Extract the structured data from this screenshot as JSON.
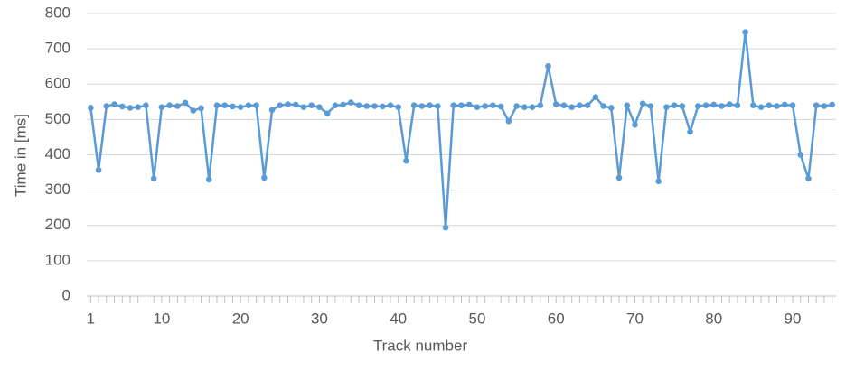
{
  "chart_data": {
    "type": "line",
    "x_label": "Track number",
    "y_label": "Time in [ms]",
    "x": [
      1,
      2,
      3,
      4,
      5,
      6,
      7,
      8,
      9,
      10,
      11,
      12,
      13,
      14,
      15,
      16,
      17,
      18,
      19,
      20,
      21,
      22,
      23,
      24,
      25,
      26,
      27,
      28,
      29,
      30,
      31,
      32,
      33,
      34,
      35,
      36,
      37,
      38,
      39,
      40,
      41,
      42,
      43,
      44,
      45,
      46,
      47,
      48,
      49,
      50,
      51,
      52,
      53,
      54,
      55,
      56,
      57,
      58,
      59,
      60,
      61,
      62,
      63,
      64,
      65,
      66,
      67,
      68,
      69,
      70,
      71,
      72,
      73,
      74,
      75,
      76,
      77,
      78,
      79,
      80,
      81,
      82,
      83,
      84,
      85,
      86,
      87,
      88,
      89,
      90,
      91,
      92,
      93,
      94,
      95
    ],
    "series": [
      {
        "name": "Time",
        "color": "#5b9bd5",
        "values": [
          533,
          357,
          538,
          543,
          537,
          533,
          535,
          540,
          333,
          535,
          540,
          538,
          547,
          525,
          532,
          330,
          540,
          540,
          537,
          535,
          540,
          540,
          335,
          527,
          540,
          543,
          542,
          535,
          540,
          535,
          517,
          540,
          542,
          548,
          540,
          538,
          538,
          537,
          540,
          535,
          383,
          540,
          538,
          540,
          538,
          194,
          540,
          540,
          542,
          535,
          538,
          540,
          537,
          495,
          538,
          535,
          535,
          540,
          651,
          543,
          540,
          535,
          540,
          540,
          563,
          538,
          533,
          335,
          540,
          485,
          545,
          538,
          325,
          535,
          540,
          538,
          465,
          538,
          540,
          542,
          538,
          543,
          540,
          747,
          540,
          535,
          540,
          538,
          542,
          540,
          400,
          333,
          540,
          538,
          542
        ]
      }
    ],
    "xlim": [
      0.5,
      95.5
    ],
    "xticks": [
      1,
      10,
      20,
      30,
      40,
      50,
      60,
      70,
      80,
      90
    ],
    "ylim": [
      0,
      800
    ],
    "yticks": [
      0,
      100,
      200,
      300,
      400,
      500,
      600,
      700,
      800
    ],
    "grid": true
  }
}
